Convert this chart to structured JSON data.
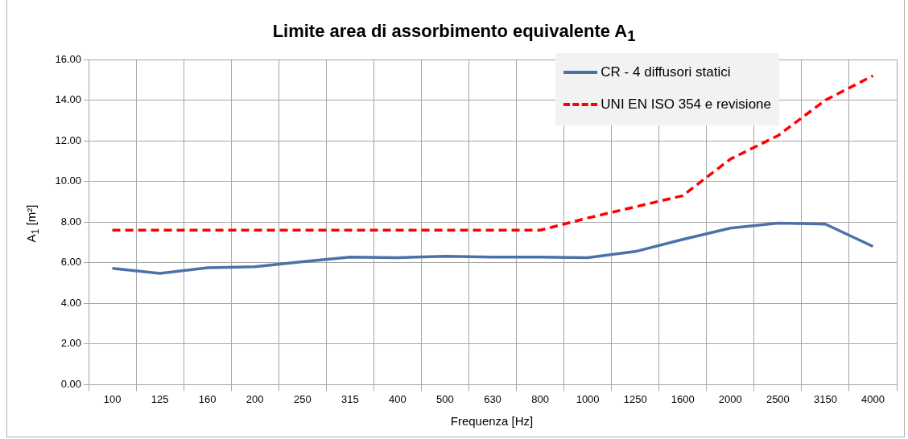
{
  "chart_data": {
    "type": "line",
    "title": "Limite area di assorbimento equivalente A$_{1}$",
    "xlabel": "Frequenza [Hz]",
    "ylabel": "A$_{1}$ [m²]",
    "categories": [
      "100",
      "125",
      "160",
      "200",
      "250",
      "315",
      "400",
      "500",
      "630",
      "800",
      "1000",
      "1250",
      "1600",
      "2000",
      "2500",
      "3150",
      "4000"
    ],
    "series": [
      {
        "name": "CR - 4 diffusori statici",
        "color": "#4a72a8",
        "line_style": "solid",
        "values": [
          5.72,
          5.48,
          5.75,
          5.8,
          6.05,
          6.28,
          6.25,
          6.32,
          6.28,
          6.28,
          6.25,
          6.55,
          7.15,
          7.7,
          7.95,
          7.9,
          6.8
        ]
      },
      {
        "name": "UNI EN ISO 354 e revisione",
        "color": "#ff0000",
        "line_style": "dashed",
        "values": [
          7.6,
          7.6,
          7.6,
          7.6,
          7.6,
          7.6,
          7.6,
          7.6,
          7.6,
          7.6,
          8.2,
          8.75,
          9.3,
          11.1,
          12.25,
          14.0,
          15.2
        ]
      }
    ],
    "ylim": [
      0,
      16
    ],
    "yticks": [
      {
        "value": 0,
        "label": "0.00"
      },
      {
        "value": 2,
        "label": "2.00"
      },
      {
        "value": 4,
        "label": "4.00"
      },
      {
        "value": 6,
        "label": "6.00"
      },
      {
        "value": 8,
        "label": "8.00"
      },
      {
        "value": 10,
        "label": "10.00"
      },
      {
        "value": 12,
        "label": "12.00"
      },
      {
        "value": 14,
        "label": "14.00"
      },
      {
        "value": 16,
        "label": "16.00"
      }
    ],
    "grid": true,
    "legend": "top right",
    "marker": "none"
  }
}
